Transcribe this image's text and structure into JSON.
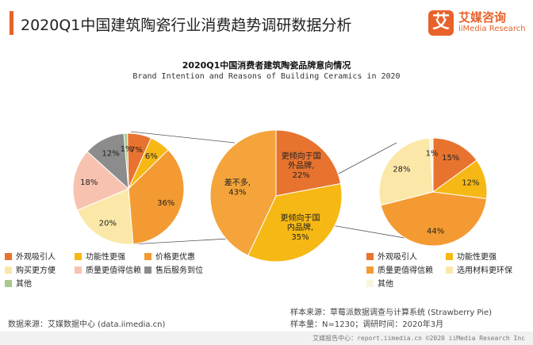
{
  "header": {
    "title": "2020Q1中国建筑陶瓷行业消费趋势调研数据分析"
  },
  "brand": {
    "logo_char": "艾",
    "name_cn": "艾媒咨询",
    "name_en": "iiMedia Research"
  },
  "chart_data": [
    {
      "type": "pie",
      "id": "brand-intention",
      "title": "2020Q1中国消费者建筑陶瓷品牌意向情况",
      "subtitle": "Brand Intention and Reasons of Building Ceramics in 2020",
      "labels": [
        "更倾向于国外品牌",
        "更倾向于国内品牌",
        "差不多"
      ],
      "label_texts": [
        "更倾向于国\n外品牌,\n22%",
        "更倾向于国\n内品牌,\n35%",
        "差不多,\n43%"
      ],
      "values": [
        22,
        35,
        43
      ],
      "colors": [
        "#e8732f",
        "#f6b814",
        "#f4a43a"
      ]
    },
    {
      "type": "pie",
      "id": "reasons-foreign",
      "labels": [
        "外观吸引人",
        "功能性更强",
        "价格更优惠",
        "购买更方便",
        "质量更值得信赖",
        "售后服务到位",
        "其他"
      ],
      "values": [
        7,
        6,
        36,
        20,
        18,
        12,
        1
      ],
      "label_texts": [
        "7%",
        "6%",
        "36%",
        "20%",
        "18%",
        "12%",
        "1%"
      ],
      "colors": [
        "#e8732f",
        "#f6b814",
        "#f49a32",
        "#fbe8a8",
        "#f7c3b0",
        "#8c8c8c",
        "#a9c98f"
      ]
    },
    {
      "type": "pie",
      "id": "reasons-domestic",
      "labels": [
        "外观吸引人",
        "功能性更强",
        "质量更值得信赖",
        "选用材料更环保",
        "其他"
      ],
      "values": [
        15,
        12,
        44,
        28,
        1
      ],
      "label_texts": [
        "15%",
        "12%",
        "44%",
        "28%",
        "1%"
      ],
      "colors": [
        "#e8732f",
        "#f6b814",
        "#f49a32",
        "#fbe8a8",
        "#fbf5dc"
      ]
    }
  ],
  "legend_left": [
    {
      "label": "外观吸引人",
      "color": "#e8732f"
    },
    {
      "label": "功能性更强",
      "color": "#f6b814"
    },
    {
      "label": "价格更优惠",
      "color": "#f49a32"
    },
    {
      "label": "购买更方便",
      "color": "#fbe8a8"
    },
    {
      "label": "质量更值得信赖",
      "color": "#f7c3b0"
    },
    {
      "label": "售后服务到位",
      "color": "#8c8c8c"
    },
    {
      "label": "其他",
      "color": "#a9c98f"
    }
  ],
  "legend_right": [
    {
      "label": "外观吸引人",
      "color": "#e8732f"
    },
    {
      "label": "功能性更强",
      "color": "#f6b814"
    },
    {
      "label": "质量更值得信赖",
      "color": "#f49a32"
    },
    {
      "label": "选用材料更环保",
      "color": "#fbe8a8"
    },
    {
      "label": "其他",
      "color": "#fbf5dc"
    }
  ],
  "notes": {
    "source_left": "数据来源：艾媒数据中心 (data.iimedia.cn)",
    "sample_source": "样本来源：草莓派数据调查与计算系统 (Strawberry Pie)",
    "sample_size": "样本量：N=1230；调研时间：2020年3月"
  },
  "footer": {
    "text": "艾媒报告中心：report.iimedia.cn  ©2020  iiMedia Research Inc"
  }
}
